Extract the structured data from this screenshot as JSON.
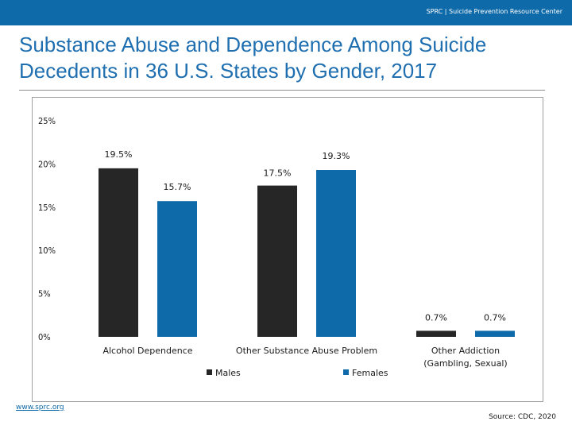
{
  "header": {
    "org_text": "SPRC  |  Suicide Prevention Resource Center"
  },
  "title": "Substance Abuse and Dependence Among Suicide Decedents in 36 U.S. States by Gender, 2017",
  "footer": {
    "link_text": "www.sprc.org",
    "source": "Source: CDC, 2020"
  },
  "colors": {
    "brand": "#0e6aa8",
    "males": "#262626",
    "females": "#0e6aa8"
  },
  "chart_data": {
    "type": "bar",
    "categories": [
      "Alcohol Dependence",
      "Other Substance Abuse Problem",
      "Other Addiction (Gambling, Sexual)"
    ],
    "series": [
      {
        "name": "Males",
        "values": [
          19.5,
          17.5,
          0.7
        ],
        "labels": [
          "19.5%",
          "17.5%",
          "0.7%"
        ]
      },
      {
        "name": "Females",
        "values": [
          15.7,
          19.3,
          0.7
        ],
        "labels": [
          "15.7%",
          "19.3%",
          "0.7%"
        ]
      }
    ],
    "ylim": [
      0,
      25
    ],
    "yticks": [
      0,
      5,
      10,
      15,
      20,
      25
    ],
    "ytick_labels": [
      "0%",
      "5%",
      "10%",
      "15%",
      "20%",
      "25%"
    ],
    "legend": [
      "Males",
      "Females"
    ],
    "grid": false
  }
}
